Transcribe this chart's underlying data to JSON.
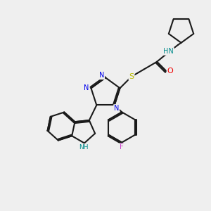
{
  "bg_color": "#efefef",
  "bond_color": "#1a1a1a",
  "N_color": "#0000ee",
  "H_color": "#008b8b",
  "O_color": "#ee0000",
  "S_color": "#bbbb00",
  "F_color": "#cc44cc",
  "lw": 1.5,
  "fs": 7.0,
  "xlim": [
    0,
    10
  ],
  "ylim": [
    0,
    10
  ]
}
